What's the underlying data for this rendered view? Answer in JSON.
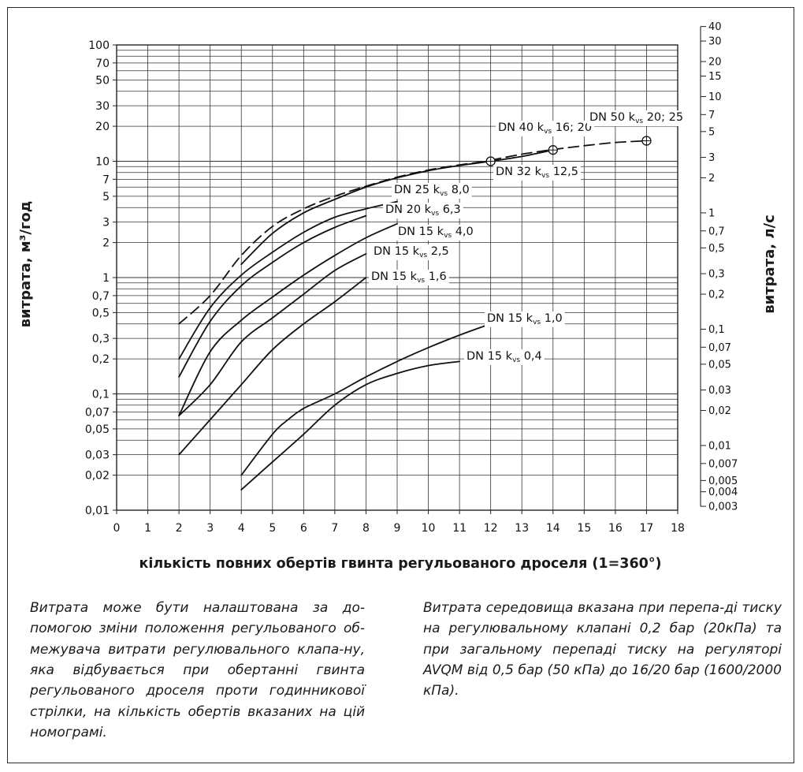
{
  "chart_data": {
    "type": "line",
    "xlabel": "кількість повних обертів гвинта регульованого дроселя (1=360°)",
    "ylabel_left": "витрата, м³/год",
    "ylabel_right": "витрата, л/с",
    "x_ticks": [
      "0",
      "1",
      "2",
      "3",
      "4",
      "5",
      "6",
      "7",
      "8",
      "9",
      "10",
      "11",
      "12",
      "13",
      "14",
      "15",
      "16",
      "17",
      "18"
    ],
    "xlim": [
      0,
      18
    ],
    "yscale": "log",
    "ylim": [
      0.01,
      100
    ],
    "y_left_ticks": [
      {
        "v": 100,
        "t": "100"
      },
      {
        "v": 70,
        "t": "70"
      },
      {
        "v": 50,
        "t": "50"
      },
      {
        "v": 30,
        "t": "30"
      },
      {
        "v": 20,
        "t": "20"
      },
      {
        "v": 10,
        "t": "10"
      },
      {
        "v": 7,
        "t": "7"
      },
      {
        "v": 5,
        "t": "5"
      },
      {
        "v": 3,
        "t": "3"
      },
      {
        "v": 2,
        "t": "2"
      },
      {
        "v": 1,
        "t": "1"
      },
      {
        "v": 0.7,
        "t": "0,7"
      },
      {
        "v": 0.5,
        "t": "0,5"
      },
      {
        "v": 0.3,
        "t": "0,3"
      },
      {
        "v": 0.2,
        "t": "0,2"
      },
      {
        "v": 0.1,
        "t": "0,1"
      },
      {
        "v": 0.07,
        "t": "0,07"
      },
      {
        "v": 0.05,
        "t": "0,05"
      },
      {
        "v": 0.03,
        "t": "0,03"
      },
      {
        "v": 0.02,
        "t": "0,02"
      },
      {
        "v": 0.01,
        "t": "0,01"
      }
    ],
    "y_right_ticks": [
      {
        "v": 40,
        "t": "40"
      },
      {
        "v": 30,
        "t": "30"
      },
      {
        "v": 20,
        "t": "20"
      },
      {
        "v": 15,
        "t": "15"
      },
      {
        "v": 10,
        "t": "10"
      },
      {
        "v": 7,
        "t": "7"
      },
      {
        "v": 5,
        "t": "5"
      },
      {
        "v": 3,
        "t": "3"
      },
      {
        "v": 2,
        "t": "2"
      },
      {
        "v": 1,
        "t": "1"
      },
      {
        "v": 0.7,
        "t": "0,7"
      },
      {
        "v": 0.5,
        "t": "0,5"
      },
      {
        "v": 0.3,
        "t": "0,3"
      },
      {
        "v": 0.2,
        "t": "0,2"
      },
      {
        "v": 0.1,
        "t": "0,1"
      },
      {
        "v": 0.07,
        "t": "0,07"
      },
      {
        "v": 0.05,
        "t": "0,05"
      },
      {
        "v": 0.03,
        "t": "0,03"
      },
      {
        "v": 0.02,
        "t": "0,02"
      },
      {
        "v": 0.01,
        "t": "0,01"
      },
      {
        "v": 0.007,
        "t": "0,007"
      },
      {
        "v": 0.005,
        "t": "0,005"
      },
      {
        "v": 0.004,
        "t": "0,004"
      },
      {
        "v": 0.003,
        "t": "0,003"
      }
    ],
    "series": [
      {
        "name": "DN 15 kvs 0,4",
        "label_dn": "DN 15 k",
        "label_val": "0,4",
        "dashed": false,
        "points": [
          [
            4,
            0.015
          ],
          [
            5,
            0.026
          ],
          [
            6,
            0.045
          ],
          [
            7,
            0.08
          ],
          [
            8,
            0.12
          ],
          [
            9,
            0.15
          ],
          [
            10,
            0.175
          ],
          [
            11,
            0.19
          ]
        ]
      },
      {
        "name": "DN 15 kvs 1,0",
        "label_dn": "DN 15 k",
        "label_val": "1,0",
        "dashed": false,
        "points": [
          [
            4,
            0.02
          ],
          [
            5,
            0.045
          ],
          [
            5.5,
            0.06
          ],
          [
            6,
            0.075
          ],
          [
            7,
            0.1
          ],
          [
            8,
            0.14
          ],
          [
            9,
            0.19
          ],
          [
            10,
            0.25
          ],
          [
            11,
            0.32
          ],
          [
            12,
            0.4
          ]
        ]
      },
      {
        "name": "DN 15 kvs 1,6",
        "label_dn": "DN 15 k",
        "label_val": "1,6",
        "dashed": false,
        "points": [
          [
            2,
            0.03
          ],
          [
            3,
            0.06
          ],
          [
            4,
            0.12
          ],
          [
            5,
            0.24
          ],
          [
            6,
            0.4
          ],
          [
            7,
            0.62
          ],
          [
            8,
            1.0
          ]
        ]
      },
      {
        "name": "DN 15 kvs 2,5",
        "label_dn": "DN 15 k",
        "label_val": "2,5",
        "dashed": false,
        "points": [
          [
            2,
            0.065
          ],
          [
            3,
            0.12
          ],
          [
            4,
            0.28
          ],
          [
            5,
            0.45
          ],
          [
            6,
            0.72
          ],
          [
            7,
            1.15
          ],
          [
            8,
            1.6
          ]
        ]
      },
      {
        "name": "DN 15 kvs 4,0",
        "label_dn": "DN 15 k",
        "label_val": "4,0",
        "dashed": false,
        "points": [
          [
            2,
            0.065
          ],
          [
            3,
            0.23
          ],
          [
            4,
            0.43
          ],
          [
            5,
            0.68
          ],
          [
            6,
            1.05
          ],
          [
            7,
            1.55
          ],
          [
            8,
            2.2
          ],
          [
            9,
            2.9
          ]
        ]
      },
      {
        "name": "DN 20 kvs 6,3",
        "label_dn": "DN 20 k",
        "label_val": "6,3",
        "dashed": false,
        "points": [
          [
            2,
            0.14
          ],
          [
            3,
            0.42
          ],
          [
            4,
            0.85
          ],
          [
            5,
            1.35
          ],
          [
            6,
            2.0
          ],
          [
            7,
            2.7
          ],
          [
            8,
            3.4
          ]
        ]
      },
      {
        "name": "DN 25 kvs 8,0",
        "label_dn": "DN 25 k",
        "label_val": "8,0",
        "dashed": false,
        "points": [
          [
            2,
            0.2
          ],
          [
            3,
            0.55
          ],
          [
            4,
            1.05
          ],
          [
            5,
            1.65
          ],
          [
            6,
            2.45
          ],
          [
            7,
            3.3
          ],
          [
            8,
            3.9
          ],
          [
            9,
            4.5
          ]
        ]
      },
      {
        "name": "DN 32 kvs 12,5",
        "label_dn": "DN 32 k",
        "label_val": "12,5",
        "dashed": false,
        "points": [
          [
            4,
            1.3
          ],
          [
            5,
            2.4
          ],
          [
            6,
            3.6
          ],
          [
            7,
            4.7
          ],
          [
            8,
            6.0
          ],
          [
            9,
            7.2
          ],
          [
            10,
            8.3
          ],
          [
            11,
            9.2
          ],
          [
            12,
            10.0
          ],
          [
            13,
            11.0
          ],
          [
            14,
            12.5
          ]
        ]
      },
      {
        "name": "DN 40 kvs 16; 20",
        "label_dn": "DN 40 k",
        "label_val": "16; 20",
        "dashed": true,
        "points": [
          [
            2,
            0.4
          ],
          [
            3,
            0.7
          ],
          [
            4,
            1.55
          ],
          [
            5,
            2.75
          ],
          [
            6,
            3.9
          ],
          [
            7,
            5.0
          ],
          [
            8,
            6.1
          ],
          [
            9,
            7.3
          ],
          [
            10,
            8.4
          ],
          [
            11,
            9.3
          ],
          [
            12,
            10.1
          ]
        ]
      },
      {
        "name": "DN 50 kvs 20; 25",
        "label_dn": "DN 50 k",
        "label_val": "20; 25",
        "dashed": true,
        "points": [
          [
            12,
            10.2
          ],
          [
            13,
            11.5
          ],
          [
            14,
            12.6
          ],
          [
            15,
            13.6
          ],
          [
            16,
            14.5
          ],
          [
            17,
            15.0
          ]
        ]
      }
    ],
    "markers": [
      [
        12,
        10.0
      ],
      [
        14,
        12.5
      ],
      [
        17,
        15.0
      ]
    ],
    "vs_sub": "vs"
  },
  "notes": {
    "left": "Витрата може бути налаштована за до-помогою зміни положення регульованого об-межувача витрати регулювального клапа-ну, яка відбувається при обертанні гвинта регульованого дроселя проти годинникової стрілки, на кількість обертів вказаних на цій номограмі.",
    "right": "Витрата середовища вказана при перепа-ді тиску на регулювальному клапані 0,2 бар (20кПа) та при загальному перепаді тиску на регуляторі AVQM від 0,5 бар (50 кПа) до 16/20 бар (1600/2000 кПа)."
  }
}
